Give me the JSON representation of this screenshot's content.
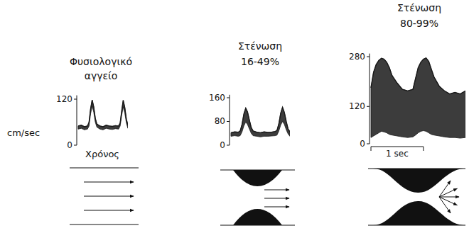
{
  "chart_data": [
    {
      "type": "line",
      "title": "Φυσιολογικό αγγείο",
      "y_label": "cm/sec",
      "x_label": "Χρόνος",
      "x": [
        0,
        0.1,
        0.2,
        0.3,
        0.35,
        0.4,
        0.45,
        0.5,
        0.55,
        0.6,
        0.7,
        0.8,
        0.9,
        1.0,
        1.1,
        1.2,
        1.3,
        1.35,
        1.4,
        1.45,
        1.5,
        1.55,
        1.6
      ],
      "values": [
        50,
        52,
        48,
        50,
        60,
        95,
        118,
        100,
        70,
        55,
        50,
        48,
        52,
        50,
        49,
        51,
        50,
        58,
        90,
        117,
        98,
        68,
        52
      ],
      "lower_values": [
        42,
        44,
        40,
        42,
        50,
        82,
        102,
        86,
        60,
        47,
        42,
        40,
        44,
        42,
        41,
        43,
        42,
        50,
        78,
        100,
        84,
        58,
        44
      ],
      "xlim": [
        0,
        1.6
      ],
      "ylim": [
        0,
        130
      ],
      "yticks": [
        0,
        120
      ],
      "tick_labels": "y",
      "color": "#1a1a1a"
    },
    {
      "type": "line",
      "title": "Στένωση 16-49%",
      "x": [
        0,
        0.1,
        0.2,
        0.25,
        0.3,
        0.35,
        0.4,
        0.45,
        0.5,
        0.55,
        0.6,
        0.7,
        0.8,
        0.9,
        1.0,
        1.1,
        1.2,
        1.25,
        1.3,
        1.35,
        1.4,
        1.45,
        1.5,
        1.55,
        1.6
      ],
      "values": [
        42,
        45,
        44,
        48,
        70,
        105,
        125,
        112,
        85,
        60,
        48,
        44,
        42,
        45,
        43,
        44,
        46,
        50,
        72,
        108,
        128,
        110,
        80,
        55,
        45
      ],
      "lower_values": [
        30,
        32,
        30,
        32,
        45,
        65,
        78,
        70,
        55,
        40,
        32,
        30,
        28,
        30,
        30,
        31,
        32,
        34,
        48,
        68,
        80,
        70,
        52,
        38,
        30
      ],
      "xlim": [
        0,
        1.6
      ],
      "ylim": [
        0,
        170
      ],
      "yticks": [
        0,
        80,
        160
      ],
      "tick_labels": "y",
      "color": "#1a1a1a"
    },
    {
      "type": "line",
      "title": "Στένωση 80-99%",
      "x": [
        0,
        0.05,
        0.1,
        0.15,
        0.2,
        0.25,
        0.3,
        0.35,
        0.4,
        0.5,
        0.6,
        0.7,
        0.8,
        0.85,
        0.9,
        0.95,
        1.0,
        1.05,
        1.1,
        1.15,
        1.2,
        1.3,
        1.4,
        1.5,
        1.6,
        1.7,
        1.8
      ],
      "values": [
        180,
        230,
        255,
        268,
        275,
        272,
        262,
        245,
        220,
        195,
        175,
        170,
        175,
        210,
        245,
        262,
        272,
        276,
        265,
        240,
        215,
        185,
        170,
        160,
        165,
        160,
        170
      ],
      "lower_values": [
        20,
        25,
        30,
        35,
        40,
        38,
        35,
        30,
        28,
        25,
        22,
        20,
        22,
        28,
        35,
        40,
        42,
        40,
        35,
        30,
        28,
        25,
        22,
        20,
        20,
        18,
        20
      ],
      "xlim": [
        0,
        1.8
      ],
      "ylim": [
        0,
        290
      ],
      "yticks": [
        0,
        120,
        280
      ],
      "tick_labels": "y",
      "color": "#1a1a1a",
      "scale_bar": {
        "label": "1 sec",
        "start": 0,
        "end": 1
      }
    }
  ]
}
